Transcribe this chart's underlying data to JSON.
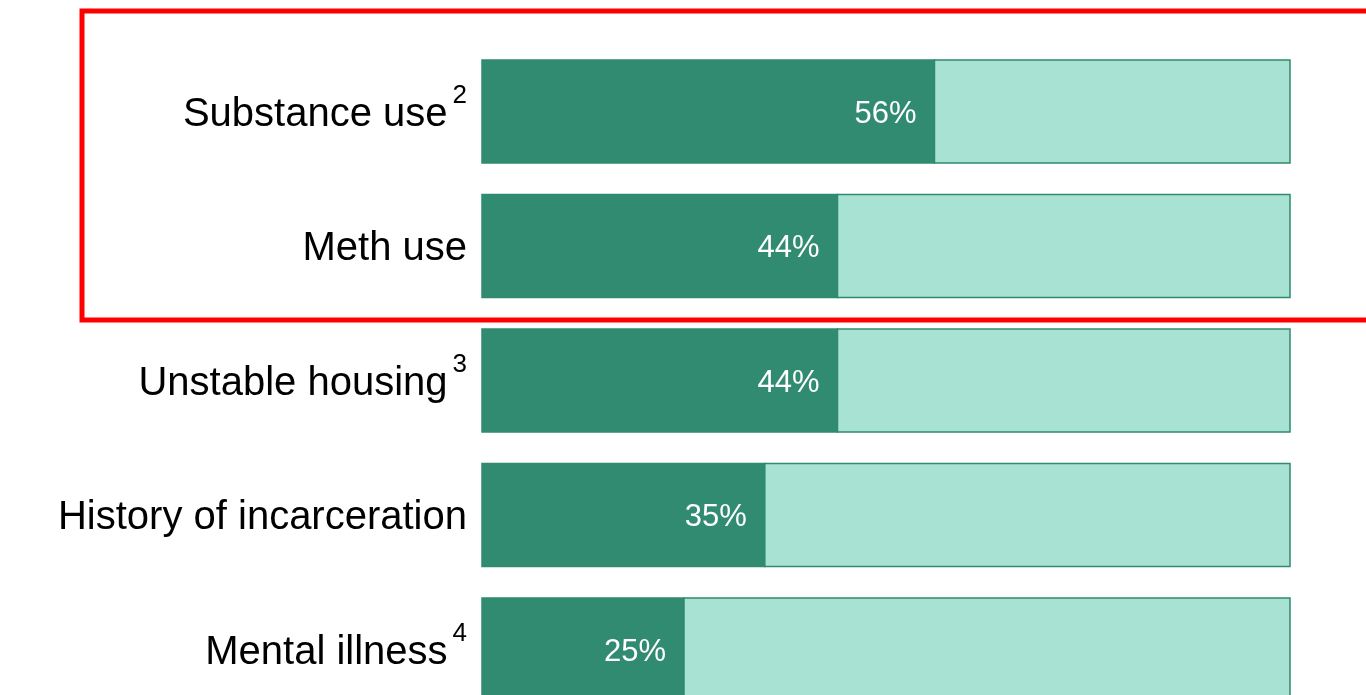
{
  "chart_data": {
    "type": "bar",
    "orientation": "horizontal",
    "stacked": true,
    "categories": [
      "Substance use$^{2}$",
      "Meth use",
      "Unstable housing$^{3}$",
      "History of incarceration",
      "Mental illness$^{4}$"
    ],
    "series": [
      {
        "color": "#318b70",
        "values": [
          56,
          44,
          44,
          35,
          25
        ],
        "value_labels": [
          "56%",
          "44%",
          "44%",
          "35%",
          "25%"
        ]
      },
      {
        "color": "#a8e2d2",
        "values": [
          44,
          56,
          56,
          65,
          75
        ]
      }
    ],
    "xlim": [
      0,
      100
    ],
    "tick_labels": "y"
  }
}
